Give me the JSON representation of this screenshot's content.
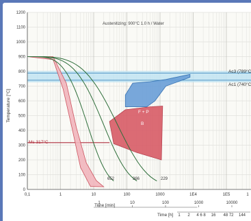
{
  "chart_data": {
    "type": "line",
    "title": "Austenitizing: 900°C 1.0 h / Water",
    "ylabel": "Temperature [°C]",
    "ylim": [
      0,
      1200
    ],
    "y_ticks": [
      "0",
      "100",
      "200",
      "300",
      "400",
      "500",
      "600",
      "700",
      "800",
      "900",
      "1000",
      "1100",
      "1200"
    ],
    "x_axes": [
      {
        "label": "Time [min]",
        "scale": "log",
        "ticks": [
          "0,1",
          "1",
          "10",
          "100",
          "1000",
          "1E4",
          "1E5",
          "1"
        ]
      },
      {
        "label": "Time [min]",
        "ticks": [
          "1",
          "10",
          "100",
          "1000",
          "10000"
        ]
      },
      {
        "label": "Time [h]",
        "ticks": [
          "1",
          "2",
          "4 6 8",
          "16",
          "48 72",
          "144"
        ]
      }
    ],
    "reference_lines": [
      {
        "label": "Ac3 (789°C)",
        "value": 789
      },
      {
        "label": "Ac1 (740°C)",
        "value": 740
      },
      {
        "label": "Ms 317°C",
        "value": 317
      }
    ],
    "phase_regions": [
      {
        "label": "F + P",
        "color": "#4a86c8"
      },
      {
        "label": "B",
        "color": "#c8424f"
      }
    ],
    "cooling_curves": [
      {
        "label": "652",
        "final_time_min": 40
      },
      {
        "label": "366",
        "final_time_min": 200
      },
      {
        "label": "229",
        "final_time_min": 800
      }
    ]
  }
}
